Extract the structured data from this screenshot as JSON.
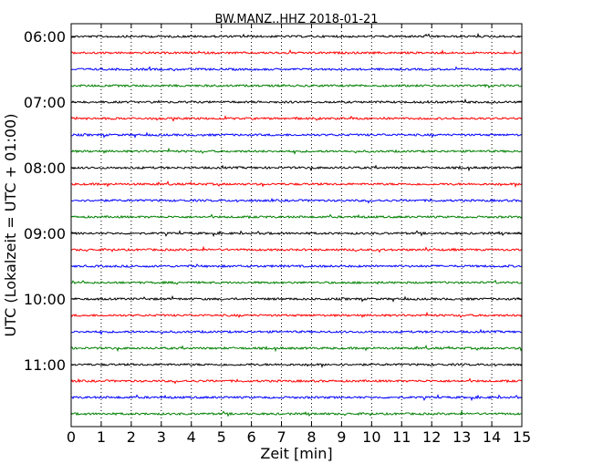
{
  "chart_data": {
    "type": "line",
    "title": "BW.MANZ..HHZ 2018-01-21",
    "xlabel": "Zeit  [min]",
    "ylabel": "UTC (Lokalzeit = UTC + 01:00)",
    "xlim": [
      0,
      15
    ],
    "xticks": [
      "0",
      "1",
      "2",
      "3",
      "4",
      "5",
      "6",
      "7",
      "8",
      "9",
      "10",
      "11",
      "12",
      "13",
      "14",
      "15"
    ],
    "yticks": [
      "06:00",
      "07:00",
      "08:00",
      "09:00",
      "10:00",
      "11:00"
    ],
    "grid": "vertical dotted at each minute",
    "trace_start_times": [
      "06:00",
      "06:15",
      "06:30",
      "06:45",
      "07:00",
      "07:15",
      "07:30",
      "07:45",
      "08:00",
      "08:15",
      "08:30",
      "08:45",
      "09:00",
      "09:15",
      "09:30",
      "09:45",
      "10:00",
      "10:15",
      "10:30",
      "10:45",
      "11:00",
      "11:15",
      "11:30",
      "11:45"
    ],
    "trace_colors": [
      "#000000",
      "#ff0000",
      "#0000ff",
      "#008000"
    ]
  }
}
